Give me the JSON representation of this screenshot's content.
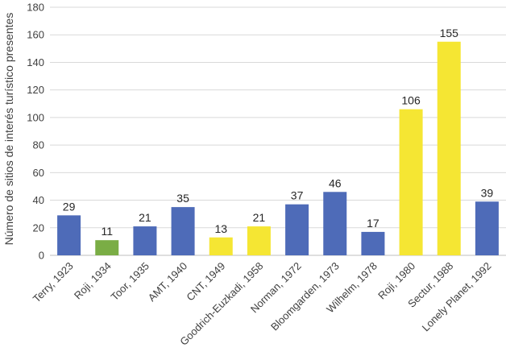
{
  "chart_data": {
    "type": "bar",
    "title": "",
    "xlabel": "",
    "ylabel": "Número de sitios de interés turístico presentes",
    "ylim": [
      0,
      180
    ],
    "yticks": [
      0,
      20,
      40,
      60,
      80,
      100,
      120,
      140,
      160,
      180
    ],
    "grid": true,
    "legend": "none",
    "categories": [
      "Terry, 1923",
      "Roji, 1934",
      "Toor, 1935",
      "AMT, 1940",
      "CNT, 1949",
      "Goodrich-Euzkadi, 1958",
      "Norman, 1972",
      "Bloomgarden, 1973",
      "Wilhelm, 1978",
      "Roji, 1980",
      "Sectur, 1988",
      "Lonely Planet, 1992"
    ],
    "values": [
      29,
      11,
      21,
      35,
      13,
      21,
      37,
      46,
      17,
      106,
      155,
      39
    ],
    "bar_colors": [
      "#4e6bb8",
      "#7aad45",
      "#4e6bb8",
      "#4e6bb8",
      "#f5e633",
      "#f5e633",
      "#4e6bb8",
      "#4e6bb8",
      "#4e6bb8",
      "#f5e633",
      "#f5e633",
      "#4e6bb8"
    ]
  }
}
